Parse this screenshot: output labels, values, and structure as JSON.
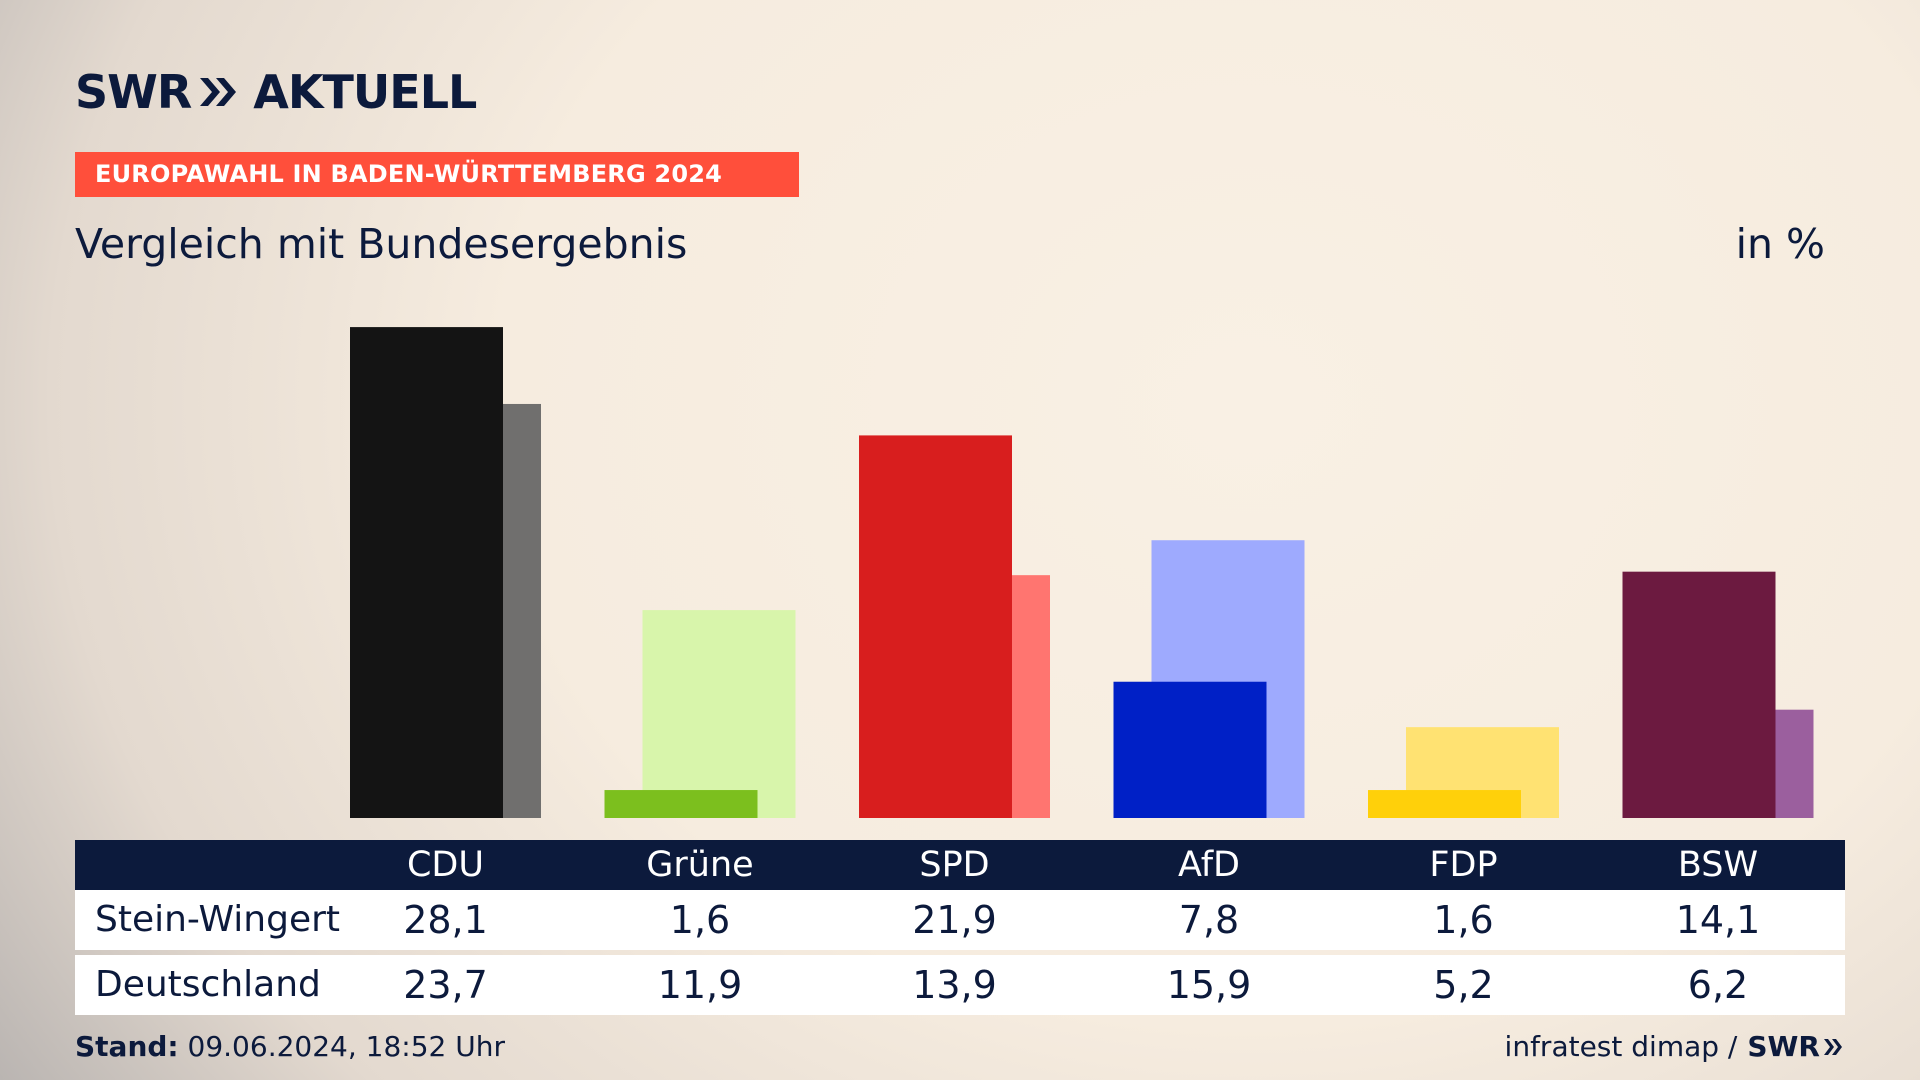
{
  "header": {
    "logo_left": "SWR",
    "logo_icon": "double-chevron-icon",
    "logo_right": "AKTUELL",
    "topic": "EUROPAWAHL IN BADEN-WÜRTTEMBERG 2024",
    "subtitle": "Vergleich mit Bundesergebnis",
    "unit": "in %"
  },
  "chart_data": {
    "type": "bar",
    "title": "Vergleich mit Bundesergebnis",
    "unit": "in %",
    "categories": [
      "CDU",
      "Grüne",
      "SPD",
      "AfD",
      "FDP",
      "BSW"
    ],
    "series": [
      {
        "name": "Stein-Wingert",
        "values": [
          28.1,
          1.6,
          21.9,
          7.8,
          1.6,
          14.1
        ]
      },
      {
        "name": "Deutschland",
        "values": [
          23.7,
          11.9,
          13.9,
          15.9,
          5.2,
          6.2
        ]
      }
    ],
    "colors": {
      "local": [
        "#141414",
        "#7cbf1e",
        "#d81e1e",
        "#0020c6",
        "#ffd00a",
        "#6c1a40"
      ],
      "national": [
        "#706f6e",
        "#d8f5ab",
        "#ff7570",
        "#9eaafe",
        "#ffe272",
        "#9b5f9e"
      ]
    },
    "ylim": [
      0,
      30
    ]
  },
  "table": {
    "row_labels": [
      "Stein-Wingert",
      "Deutschland"
    ],
    "rows": [
      [
        "28,1",
        "1,6",
        "21,9",
        "7,8",
        "1,6",
        "14,1"
      ],
      [
        "23,7",
        "11,9",
        "13,9",
        "15,9",
        "5,2",
        "6,2"
      ]
    ]
  },
  "footer": {
    "stand_label": "Stand:",
    "stand_value": "09.06.2024, 18:52 Uhr",
    "source": "infratest dimap /",
    "brand": "SWR",
    "brand_icon": "double-chevron-icon"
  }
}
